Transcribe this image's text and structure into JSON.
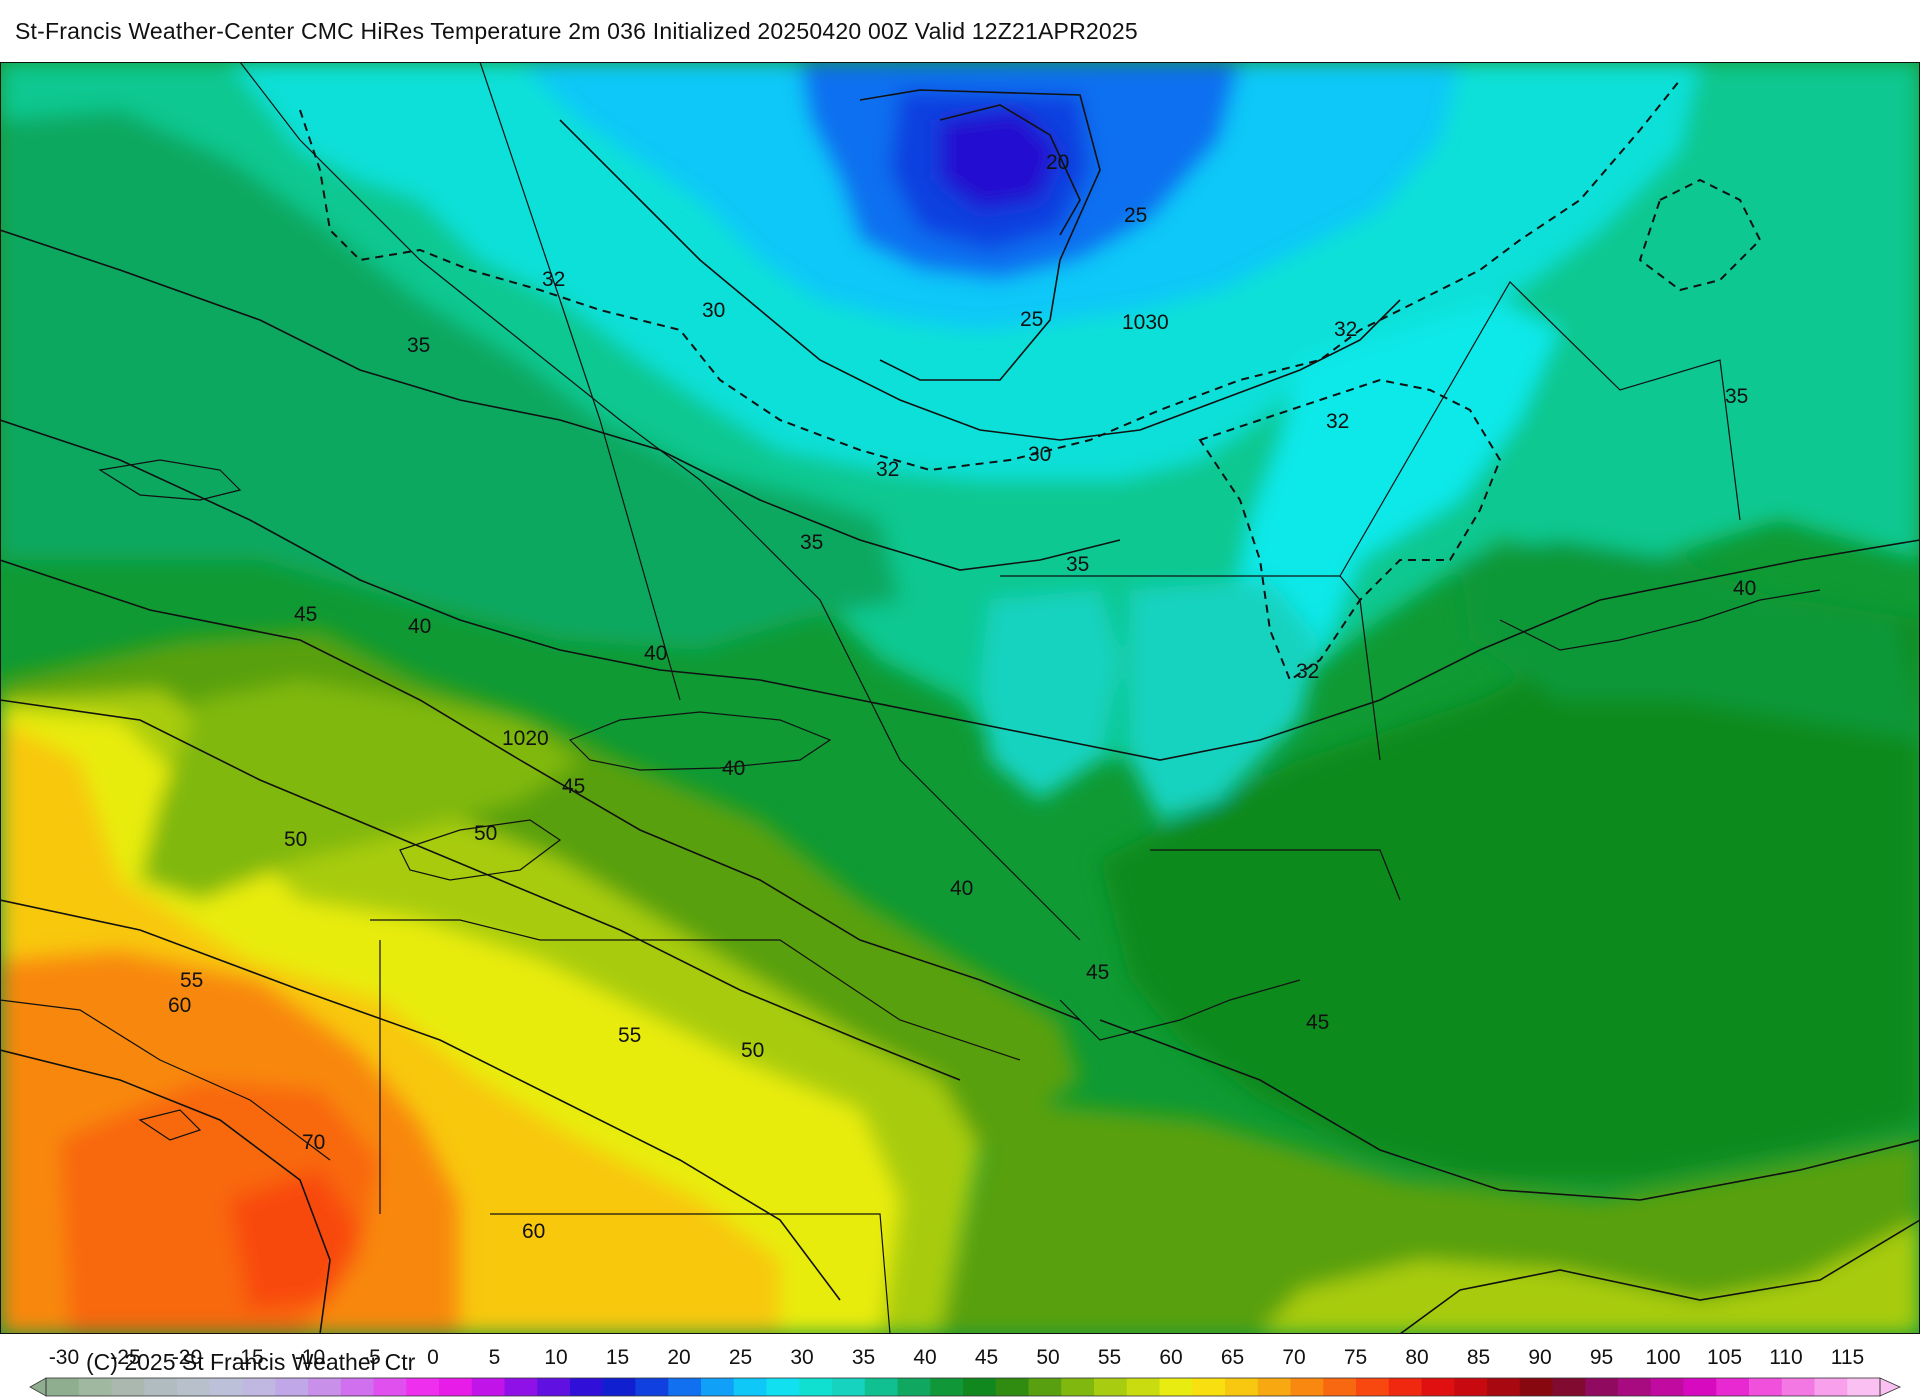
{
  "header": {
    "title": "St-Francis Weather-Center CMC HiRes Temperature 2m  036 Initialized 20250420 00Z Valid 12Z21APR2025"
  },
  "footer": {
    "copyright": "(C) 2025 St Francis Weather Ctr"
  },
  "colors": {
    "land_cold": "#16d3c0",
    "ocean_main": "#0f8a1e",
    "border": "#111111"
  },
  "map": {
    "labels": [
      {
        "id": "t20",
        "text": "20"
      },
      {
        "id": "t25a",
        "text": "25"
      },
      {
        "id": "t25b",
        "text": "25"
      },
      {
        "id": "p1030",
        "text": "1030"
      },
      {
        "id": "t30a",
        "text": "30"
      },
      {
        "id": "t30b",
        "text": "30"
      },
      {
        "id": "t32a",
        "text": "32"
      },
      {
        "id": "t32b",
        "text": "32"
      },
      {
        "id": "t32c",
        "text": "32"
      },
      {
        "id": "t32d",
        "text": "32"
      },
      {
        "id": "t32e",
        "text": "32"
      },
      {
        "id": "t35a",
        "text": "35"
      },
      {
        "id": "t35b",
        "text": "35"
      },
      {
        "id": "t35c",
        "text": "35"
      },
      {
        "id": "t35d",
        "text": "35"
      },
      {
        "id": "t40a",
        "text": "40"
      },
      {
        "id": "t40b",
        "text": "40"
      },
      {
        "id": "t40c",
        "text": "40"
      },
      {
        "id": "t40d",
        "text": "40"
      },
      {
        "id": "t40e",
        "text": "40"
      },
      {
        "id": "t45a",
        "text": "45"
      },
      {
        "id": "t45b",
        "text": "45"
      },
      {
        "id": "t45c",
        "text": "45"
      },
      {
        "id": "t45d",
        "text": "45"
      },
      {
        "id": "p1020",
        "text": "1020"
      },
      {
        "id": "t50a",
        "text": "50"
      },
      {
        "id": "t50b",
        "text": "50"
      },
      {
        "id": "t50c",
        "text": "50"
      },
      {
        "id": "t55a",
        "text": "55"
      },
      {
        "id": "t55b",
        "text": "55"
      },
      {
        "id": "t60a",
        "text": "60"
      },
      {
        "id": "t60b",
        "text": "60"
      },
      {
        "id": "t70",
        "text": "70"
      }
    ]
  },
  "colorbar": {
    "ticks": [
      "-30",
      "-25",
      "-20",
      "-15",
      "-10",
      "-5",
      "0",
      "5",
      "10",
      "15",
      "20",
      "25",
      "30",
      "35",
      "40",
      "45",
      "50",
      "55",
      "60",
      "65",
      "70",
      "75",
      "80",
      "85",
      "90",
      "95",
      "100",
      "105",
      "110",
      "115"
    ],
    "colors": [
      "#8fae8f",
      "#a0b8a0",
      "#aab8b0",
      "#b0bcc0",
      "#b8c0cc",
      "#bcc0d8",
      "#c0b8e0",
      "#c0a8e8",
      "#c890e8",
      "#d070ee",
      "#e050ee",
      "#ee30ee",
      "#e81ce8",
      "#c014e8",
      "#9010e8",
      "#6010e0",
      "#3010d8",
      "#1020d0",
      "#1040e0",
      "#1070f0",
      "#10a0f8",
      "#10c8f8",
      "#10e0f0",
      "#10e0d0",
      "#16d3c0",
      "#10c090",
      "#10a860",
      "#109838",
      "#10881e",
      "#308c10",
      "#58a010",
      "#80b810",
      "#a8cc10",
      "#c8dc10",
      "#e8ec10",
      "#f8e010",
      "#f8c810",
      "#f8a810",
      "#f88810",
      "#f86810",
      "#f84810",
      "#f02810",
      "#e01010",
      "#c80a10",
      "#a80810",
      "#880810",
      "#800a30",
      "#900a60",
      "#a80a80",
      "#c00aa0",
      "#d80ac0",
      "#e828d0",
      "#f050dc",
      "#f478e4",
      "#f8a0ec",
      "#fac0f2"
    ]
  }
}
